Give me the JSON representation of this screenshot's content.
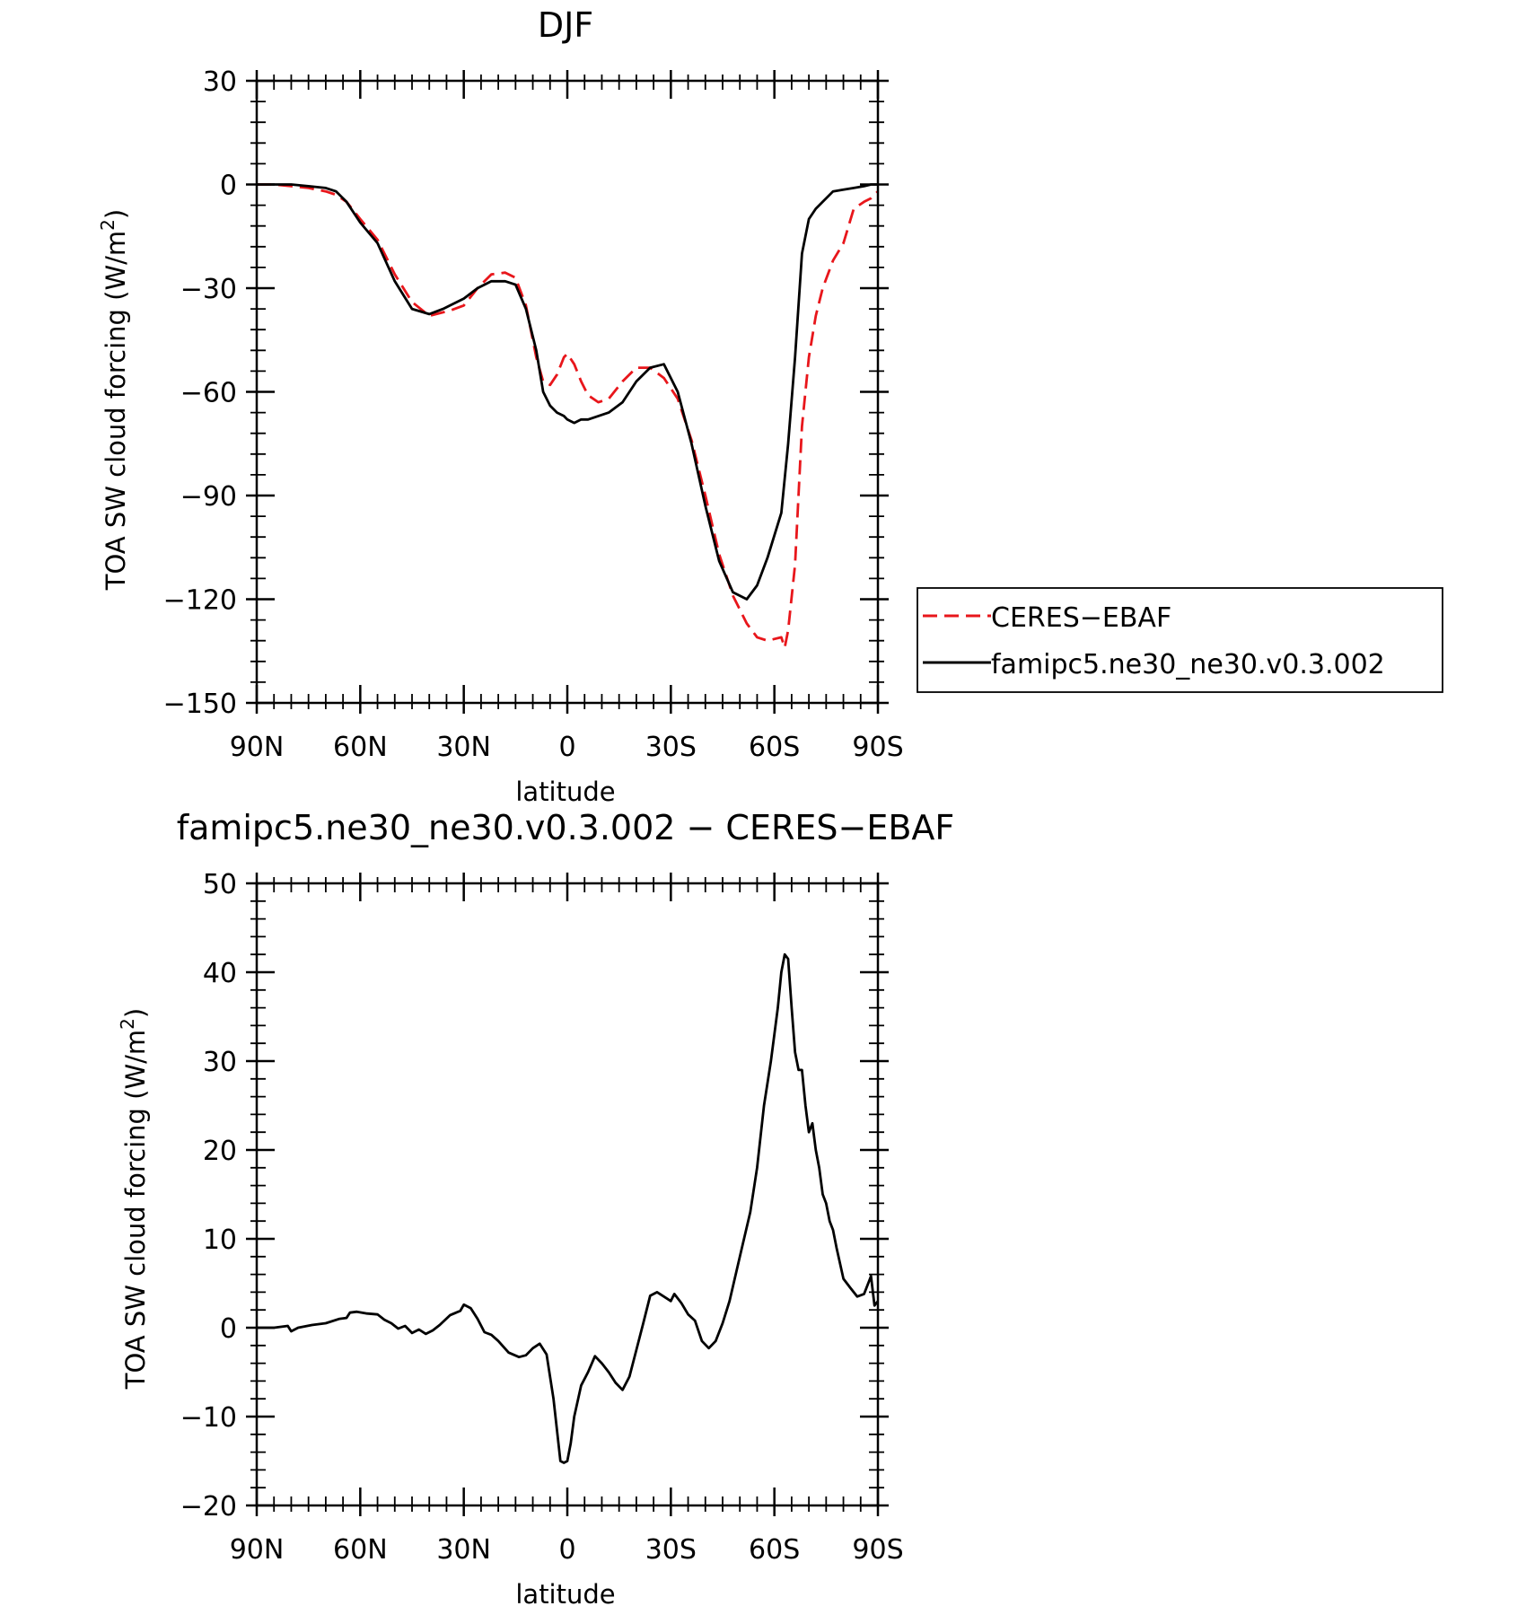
{
  "chart_data": [
    {
      "type": "line",
      "title": "DJF",
      "xlabel": "latitude",
      "ylabel": "TOA SW cloud forcing (W/m",
      "ylabel_sup": "2",
      "ylabel_close": ")",
      "ylim": [
        -150,
        30
      ],
      "yticks": [
        30,
        0,
        -30,
        -60,
        -90,
        -120,
        -150
      ],
      "ytick_labels": [
        "30",
        "0",
        "−30",
        "−60",
        "−90",
        "−120",
        "−150"
      ],
      "xlim": [
        90,
        -90
      ],
      "xticks": [
        90,
        60,
        30,
        0,
        -30,
        -60,
        -90
      ],
      "xtick_labels": [
        "90N",
        "60N",
        "30N",
        "0",
        "30S",
        "60S",
        "90S"
      ],
      "legend": "right",
      "grid": false,
      "series": [
        {
          "name": "CERES−EBAF",
          "color": "#e8161b",
          "dash": true,
          "x": [
            90,
            85,
            80,
            75,
            70,
            67,
            64,
            60,
            55,
            50,
            45,
            40,
            36,
            34,
            30,
            26,
            22,
            18,
            15,
            12,
            9,
            7,
            5,
            3,
            1,
            0,
            -2,
            -4,
            -6,
            -9,
            -12,
            -16,
            -20,
            -24,
            -28,
            -32,
            -36,
            -40,
            -44,
            -48,
            -52,
            -55,
            -58,
            -62,
            -63,
            -64,
            -66,
            -68,
            -70,
            -72,
            -74,
            -77,
            -80,
            -83,
            -86,
            -88,
            -89,
            -90
          ],
          "y": [
            0,
            0,
            -0.5,
            -1,
            -2,
            -3,
            -5,
            -10,
            -16,
            -26,
            -34,
            -38,
            -37,
            -36.5,
            -35,
            -30,
            -26,
            -25.5,
            -27,
            -35,
            -50,
            -57,
            -58,
            -55,
            -50,
            -49,
            -52,
            -57,
            -61,
            -63,
            -62,
            -57,
            -53,
            -53,
            -56,
            -62,
            -74,
            -90,
            -107,
            -119,
            -127,
            -131,
            -132,
            -131,
            -134,
            -129,
            -110,
            -70,
            -50,
            -38,
            -30,
            -22,
            -17,
            -7,
            -5,
            -4,
            -3,
            -2
          ]
        },
        {
          "name": "famipc5.ne30_ne30.v0.3.002",
          "color": "#000000",
          "dash": false,
          "x": [
            90,
            85,
            80,
            75,
            70,
            67,
            64,
            60,
            55,
            50,
            45,
            40,
            36,
            34,
            30,
            26,
            22,
            18,
            15,
            12,
            9,
            7,
            5,
            3,
            1,
            0,
            -2,
            -4,
            -6,
            -9,
            -12,
            -16,
            -20,
            -24,
            -28,
            -32,
            -36,
            -40,
            -44,
            -48,
            -52,
            -55,
            -58,
            -62,
            -64,
            -66,
            -68,
            -70,
            -72,
            -74,
            -77,
            -80,
            -83,
            -86,
            -88,
            -89,
            -90
          ],
          "y": [
            0,
            0,
            0,
            -0.5,
            -1,
            -2,
            -5,
            -11,
            -17,
            -28,
            -36,
            -37.5,
            -36,
            -35,
            -33,
            -30,
            -28,
            -28,
            -29,
            -36,
            -48,
            -60,
            -64,
            -66,
            -67,
            -68,
            -69,
            -68,
            -68,
            -67,
            -66,
            -63,
            -57,
            -53,
            -52,
            -60,
            -75,
            -93,
            -109,
            -118,
            -120,
            -116,
            -108,
            -95,
            -75,
            -50,
            -20,
            -10,
            -7,
            -5,
            -2,
            -1.5,
            -1,
            -0.5,
            0,
            0,
            0
          ]
        }
      ]
    },
    {
      "type": "line",
      "title": "famipc5.ne30_ne30.v0.3.002 − CERES−EBAF",
      "xlabel": "latitude",
      "ylabel": "TOA SW cloud forcing (W/m",
      "ylabel_sup": "2",
      "ylabel_close": ")",
      "ylim": [
        -20,
        50
      ],
      "yticks": [
        50,
        40,
        30,
        20,
        10,
        0,
        -10,
        -20
      ],
      "ytick_labels": [
        "50",
        "40",
        "30",
        "20",
        "10",
        "0",
        "−10",
        "−20"
      ],
      "xlim": [
        90,
        -90
      ],
      "xticks": [
        90,
        60,
        30,
        0,
        -30,
        -60,
        -90
      ],
      "xtick_labels": [
        "90N",
        "60N",
        "30N",
        "0",
        "30S",
        "60S",
        "90S"
      ],
      "grid": false,
      "series": [
        {
          "color": "#000000",
          "dash": false,
          "x": [
            90,
            85,
            81,
            80,
            78,
            74,
            70,
            66,
            64,
            63,
            61,
            58,
            55,
            53,
            51,
            49,
            47,
            45,
            43,
            41,
            39,
            37,
            34,
            31,
            30,
            28,
            26,
            24,
            22,
            20,
            17,
            14,
            12,
            10,
            8,
            6,
            4,
            2,
            1,
            0,
            -1,
            -2,
            -4,
            -6,
            -8,
            -10,
            -12,
            -14,
            -16,
            -18,
            -20,
            -22,
            -24,
            -26,
            -28,
            -30,
            -31,
            -33,
            -35,
            -37,
            -39,
            -41,
            -43,
            -45,
            -47,
            -50,
            -53,
            -55,
            -57,
            -59,
            -61,
            -62,
            -63,
            -64,
            -65,
            -66,
            -67,
            -68,
            -69,
            -70,
            -71,
            -72,
            -73,
            -74,
            -75,
            -76,
            -77,
            -78,
            -80,
            -82,
            -84,
            -86,
            -88,
            -89,
            -90
          ],
          "y": [
            0,
            0,
            0.2,
            -0.4,
            0,
            0.3,
            0.5,
            1,
            1.1,
            1.7,
            1.8,
            1.6,
            1.5,
            0.9,
            0.5,
            -0.1,
            0.2,
            -0.6,
            -0.2,
            -0.7,
            -0.3,
            0.3,
            1.4,
            1.9,
            2.6,
            2.2,
            1,
            -0.5,
            -0.8,
            -1.5,
            -2.8,
            -3.3,
            -3.1,
            -2.3,
            -1.8,
            -3,
            -8,
            -15,
            -15.2,
            -15,
            -13,
            -10,
            -6.5,
            -5,
            -3.2,
            -4,
            -5,
            -6.2,
            -7,
            -5.5,
            -2.5,
            0.5,
            3.6,
            4,
            3.5,
            3,
            3.8,
            2.8,
            1.5,
            0.8,
            -1.5,
            -2.3,
            -1.5,
            0.5,
            3,
            8,
            13,
            18,
            25,
            30,
            36,
            40,
            42,
            41.5,
            36,
            31,
            29,
            29,
            25,
            22,
            23,
            20,
            18,
            15,
            14,
            12,
            11,
            9,
            5.5,
            4.5,
            3.5,
            3.8,
            5.8,
            2.5,
            3
          ]
        }
      ]
    }
  ]
}
